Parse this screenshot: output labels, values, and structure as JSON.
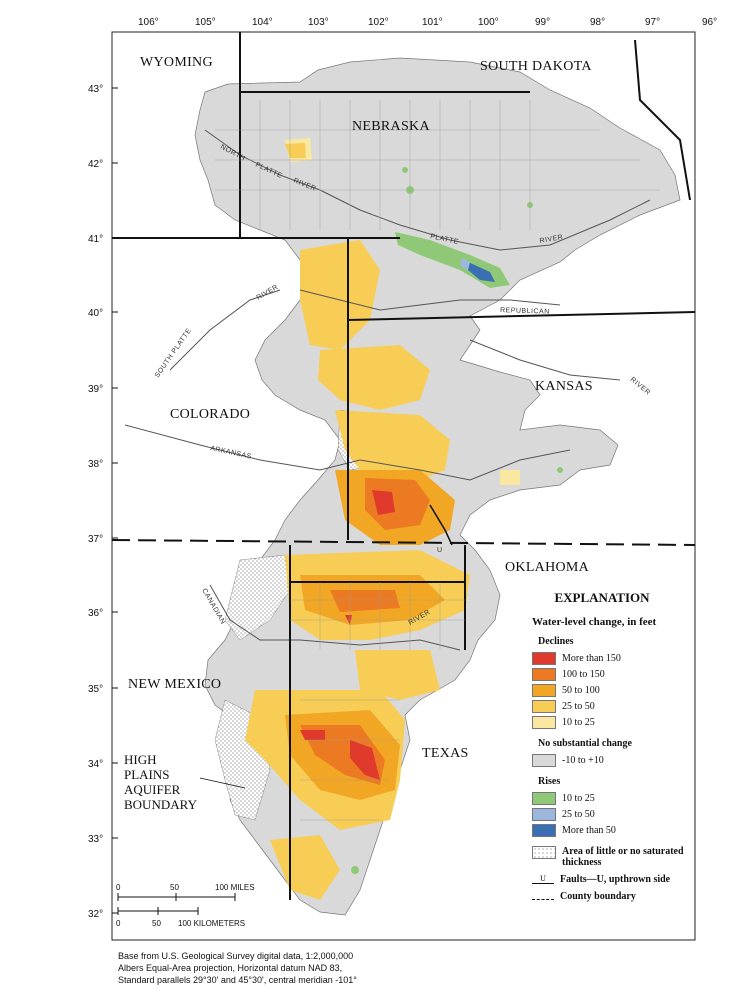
{
  "states": {
    "wyoming": "WYOMING",
    "south_dakota": "SOUTH DAKOTA",
    "nebraska": "NEBRASKA",
    "colorado": "COLORADO",
    "kansas": "KANSAS",
    "oklahoma": "OKLAHOMA",
    "new_mexico": "NEW MEXICO",
    "texas": "TEXAS"
  },
  "longitudes": [
    "106°",
    "105°",
    "104°",
    "103°",
    "102°",
    "101°",
    "100°",
    "99°",
    "98°",
    "97°",
    "96°"
  ],
  "latitudes": [
    "43°",
    "42°",
    "41°",
    "40°",
    "39°",
    "38°",
    "37°",
    "36°",
    "35°",
    "34°",
    "33°",
    "32°"
  ],
  "rivers": {
    "north_platte": "NORTH",
    "north_platte_2": "PLATTE",
    "north_platte_3": "RIVER",
    "platte": "PLATTE",
    "platte_2": "RIVER",
    "republican": "REPUBLICAN",
    "south_platte": "SOUTH PLATTE",
    "arkansas": "ARKANSAS",
    "river_kansas": "RIVER",
    "canadian": "CANADIAN",
    "river_tx": "RIVER",
    "river_co": "RIVER"
  },
  "boundary_label": [
    "HIGH",
    "PLAINS",
    "AQUIFER",
    "BOUNDARY"
  ],
  "legend": {
    "title": "EXPLANATION",
    "subtitle": "Water-level change, in feet",
    "declines_label": "Declines",
    "declines": [
      {
        "label": "More than 150",
        "color": "#e03a2c"
      },
      {
        "label": "100 to 150",
        "color": "#ec7a23"
      },
      {
        "label": "50 to 100",
        "color": "#f2a724"
      },
      {
        "label": "25 to 50",
        "color": "#f7cd55"
      },
      {
        "label": "10 to 25",
        "color": "#fbe8a0"
      }
    ],
    "no_change_label": "No substantial change",
    "no_change": {
      "label": "-10 to +10",
      "color": "#d9d9d9"
    },
    "rises_label": "Rises",
    "rises": [
      {
        "label": "10 to 25",
        "color": "#8fc978"
      },
      {
        "label": "25 to 50",
        "color": "#9cb9dd"
      },
      {
        "label": "More than 50",
        "color": "#3a6fb3"
      }
    ],
    "little_saturated": "Area of little or no saturated thickness",
    "faults_symbol": "U",
    "faults": "Faults—U, upthrown side",
    "county": "County boundary"
  },
  "scale": {
    "miles": [
      "0",
      "50",
      "100 MILES"
    ],
    "km": [
      "0",
      "50",
      "100 KILOMETERS"
    ]
  },
  "credit": [
    "Base from U.S. Geological Survey digital data, 1:2,000,000",
    "Albers Equal-Area projection, Horizontal datum NAD 83,",
    "Standard parallels 29°30' and 45°30', central meridian -101°"
  ],
  "fault_marker": "U"
}
